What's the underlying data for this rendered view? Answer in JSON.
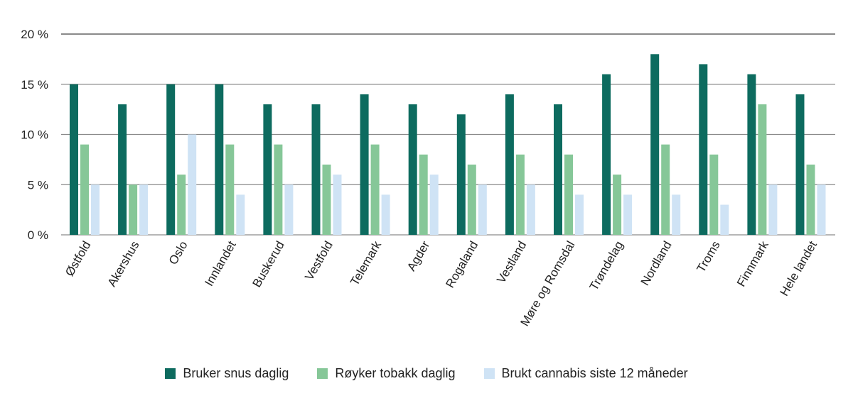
{
  "chart_data": {
    "type": "bar",
    "title": "",
    "xlabel": "",
    "ylabel": "",
    "ylim": [
      0,
      20
    ],
    "yticks": [
      0,
      5,
      10,
      15,
      20
    ],
    "ytick_labels": [
      "0 %",
      "5 %",
      "10 %",
      "15 %",
      "20 %"
    ],
    "grid": true,
    "legend_position": "bottom",
    "categories": [
      "Østfold",
      "Akershus",
      "Oslo",
      "Innlandet",
      "Buskerud",
      "Vestfold",
      "Telemark",
      "Agder",
      "Rogaland",
      "Vestland",
      "Møre og Romsdal",
      "Trøndelag",
      "Nordland",
      "Troms",
      "Finnmark",
      "Hele landet"
    ],
    "series": [
      {
        "name": "Bruker snus daglig",
        "color": "#0d6b5f",
        "values": [
          15,
          13,
          15,
          15,
          13,
          13,
          14,
          13,
          12,
          14,
          13,
          16,
          18,
          17,
          16,
          14
        ]
      },
      {
        "name": "Røyker tobakk daglig",
        "color": "#86c798",
        "values": [
          9,
          5,
          6,
          9,
          9,
          7,
          9,
          8,
          7,
          8,
          8,
          6,
          9,
          8,
          13,
          7
        ]
      },
      {
        "name": "Brukt cannabis siste 12 måneder",
        "color": "#cfe3f5",
        "values": [
          5,
          5,
          10,
          4,
          5,
          6,
          4,
          6,
          5,
          5,
          4,
          4,
          4,
          3,
          5,
          5
        ]
      }
    ]
  },
  "legend": {
    "items": [
      {
        "label": "Bruker snus daglig",
        "color": "#0d6b5f"
      },
      {
        "label": "Røyker tobakk daglig",
        "color": "#86c798"
      },
      {
        "label": "Brukt cannabis siste 12 måneder",
        "color": "#cfe3f5"
      }
    ]
  }
}
